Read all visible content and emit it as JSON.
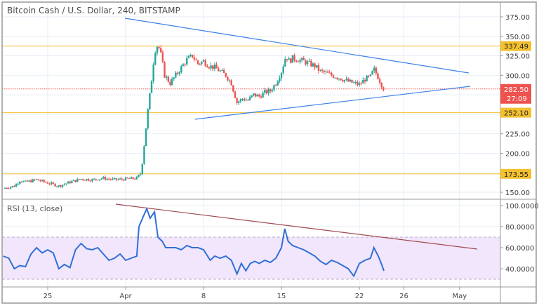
{
  "header": {
    "title": "Bitcoin Cash / U.S. Dollar, 240, BITSTAMP"
  },
  "colors": {
    "up": "#26a69a",
    "down": "#ef5350",
    "trend": "#3d7fe8",
    "hline": "#f5c542",
    "label": "#f3c02f",
    "last": "#ef5350",
    "rsi": "#2f6fd6",
    "rsiband": "#f1e6fc",
    "rsitrend": "#a04a50"
  },
  "price_axis": {
    "ticks": [
      "375.00",
      "350.00",
      "325.00",
      "300.00",
      "225.00",
      "200.00",
      "150.00"
    ],
    "tick_values": [
      375,
      350,
      325,
      300,
      225,
      200,
      150
    ]
  },
  "levels": [
    {
      "value": 337.49,
      "label": "337.49"
    },
    {
      "value": 252.1,
      "label": "252.10"
    },
    {
      "value": 173.55,
      "label": "173.55"
    }
  ],
  "last_price": {
    "value": 282.5,
    "label": "282.50",
    "countdown": "27:09"
  },
  "rsi": {
    "title": "RSI (13, close)",
    "ticks": [
      "100.0000",
      "80.0000",
      "60.0000",
      "40.0000"
    ],
    "tick_values": [
      100,
      80,
      60,
      40
    ],
    "upper": 70,
    "lower": 30
  },
  "time_axis": {
    "labels": [
      {
        "day": -7,
        "label": "25"
      },
      {
        "day": 0,
        "label": "Apr"
      },
      {
        "day": 7,
        "label": "8"
      },
      {
        "day": 14,
        "label": "15"
      },
      {
        "day": 21,
        "label": "22"
      },
      {
        "day": 25,
        "label": "26"
      },
      {
        "day": 30,
        "label": "May"
      }
    ]
  },
  "price_path": [
    [
      -11,
      155
    ],
    [
      -10,
      158
    ],
    [
      -9.5,
      165
    ],
    [
      -9,
      163
    ],
    [
      -8,
      166
    ],
    [
      -7,
      162
    ],
    [
      -6,
      158
    ],
    [
      -5,
      163
    ],
    [
      -4,
      167
    ],
    [
      -3,
      166
    ],
    [
      -2,
      168
    ],
    [
      -1,
      166
    ],
    [
      0,
      167
    ],
    [
      1,
      168
    ],
    [
      1.4,
      175
    ],
    [
      1.7,
      215
    ],
    [
      2,
      255
    ],
    [
      2.3,
      290
    ],
    [
      2.6,
      330
    ],
    [
      2.9,
      340
    ],
    [
      3.2,
      325
    ],
    [
      3.5,
      300
    ],
    [
      4,
      290
    ],
    [
      4.5,
      300
    ],
    [
      5,
      310
    ],
    [
      5.5,
      320
    ],
    [
      6,
      325
    ],
    [
      6.5,
      315
    ],
    [
      7,
      318
    ],
    [
      7.5,
      312
    ],
    [
      8,
      310
    ],
    [
      8.5,
      305
    ],
    [
      9,
      300
    ],
    [
      9.5,
      290
    ],
    [
      10,
      265
    ],
    [
      10.5,
      270
    ],
    [
      11,
      268
    ],
    [
      11.5,
      275
    ],
    [
      12,
      273
    ],
    [
      12.5,
      278
    ],
    [
      13,
      280
    ],
    [
      13.5,
      290
    ],
    [
      14,
      305
    ],
    [
      14.4,
      325
    ],
    [
      14.7,
      318
    ],
    [
      15,
      322
    ],
    [
      15.5,
      320
    ],
    [
      16,
      318
    ],
    [
      16.5,
      315
    ],
    [
      17,
      312
    ],
    [
      17.5,
      305
    ],
    [
      18,
      303
    ],
    [
      18.5,
      300
    ],
    [
      19,
      298
    ],
    [
      19.5,
      295
    ],
    [
      20,
      292
    ],
    [
      20.5,
      290
    ],
    [
      21,
      288
    ],
    [
      21.5,
      295
    ],
    [
      22,
      298
    ],
    [
      22.3,
      308
    ],
    [
      22.6,
      300
    ],
    [
      23,
      288
    ],
    [
      23.2,
      282.5
    ]
  ],
  "rsi_path": [
    [
      -11,
      52
    ],
    [
      -10.5,
      50
    ],
    [
      -10,
      40
    ],
    [
      -9.5,
      43
    ],
    [
      -9,
      42
    ],
    [
      -8.5,
      54
    ],
    [
      -8,
      60
    ],
    [
      -7.5,
      55
    ],
    [
      -7,
      58
    ],
    [
      -6.5,
      55
    ],
    [
      -6,
      40
    ],
    [
      -5.5,
      44
    ],
    [
      -5,
      41
    ],
    [
      -4.5,
      58
    ],
    [
      -4,
      64
    ],
    [
      -3.5,
      59
    ],
    [
      -3,
      58
    ],
    [
      -2.5,
      60
    ],
    [
      -2,
      54
    ],
    [
      -1.5,
      48
    ],
    [
      -1,
      50
    ],
    [
      -0.5,
      54
    ],
    [
      0,
      48
    ],
    [
      0.5,
      50
    ],
    [
      1,
      52
    ],
    [
      1.2,
      80
    ],
    [
      1.6,
      90
    ],
    [
      1.9,
      97
    ],
    [
      2.2,
      88
    ],
    [
      2.6,
      94
    ],
    [
      2.9,
      70
    ],
    [
      3.3,
      66
    ],
    [
      3.6,
      60
    ],
    [
      4,
      60
    ],
    [
      4.5,
      60
    ],
    [
      5,
      58
    ],
    [
      5.5,
      62
    ],
    [
      6,
      60
    ],
    [
      6.5,
      60
    ],
    [
      7,
      58
    ],
    [
      7.3,
      53
    ],
    [
      7.6,
      48
    ],
    [
      8,
      52
    ],
    [
      8.5,
      50
    ],
    [
      9,
      52
    ],
    [
      9.5,
      48
    ],
    [
      10,
      35
    ],
    [
      10.4,
      45
    ],
    [
      10.8,
      38
    ],
    [
      11.2,
      45
    ],
    [
      11.6,
      47
    ],
    [
      12,
      45
    ],
    [
      12.5,
      48
    ],
    [
      13,
      46
    ],
    [
      13.5,
      50
    ],
    [
      14,
      60
    ],
    [
      14.3,
      78
    ],
    [
      14.6,
      66
    ],
    [
      15,
      62
    ],
    [
      15.5,
      60
    ],
    [
      16,
      58
    ],
    [
      16.5,
      55
    ],
    [
      17,
      52
    ],
    [
      17.5,
      47
    ],
    [
      18,
      44
    ],
    [
      18.5,
      48
    ],
    [
      19,
      46
    ],
    [
      19.5,
      43
    ],
    [
      20,
      40
    ],
    [
      20.5,
      33
    ],
    [
      21,
      45
    ],
    [
      21.5,
      48
    ],
    [
      22,
      50
    ],
    [
      22.3,
      60
    ],
    [
      22.7,
      52
    ],
    [
      23,
      44
    ],
    [
      23.2,
      38
    ]
  ]
}
